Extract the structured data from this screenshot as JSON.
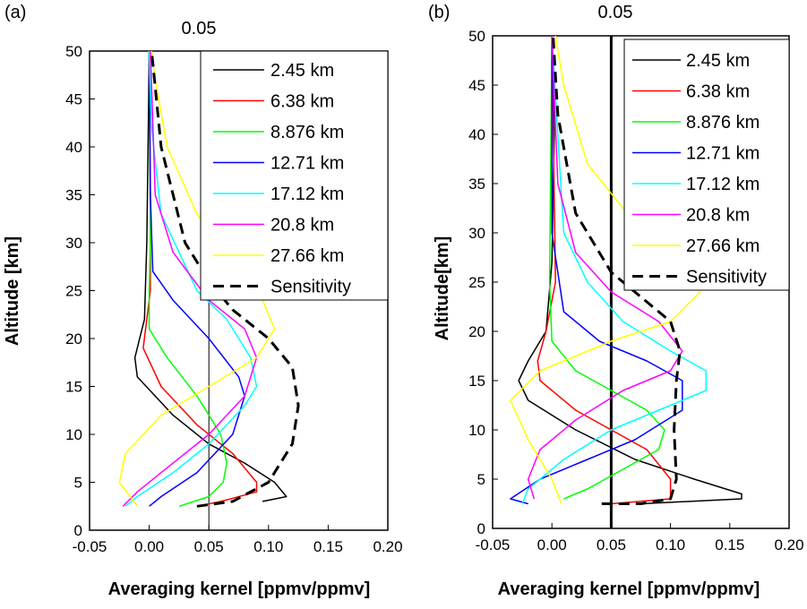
{
  "chart_data": [
    {
      "panel_label": "(a)",
      "type": "line",
      "reference_label": "0.05",
      "reference_x": 0.05,
      "xlabel": "Averaging  kernel [ppmv/ppmv]",
      "ylabel": "Altitude [km]",
      "xlim": [
        -0.05,
        0.2
      ],
      "ylim": [
        0,
        50
      ],
      "xticks": [
        "-0.05",
        "0.00",
        "0.05",
        "0.10",
        "0.15",
        "0.20"
      ],
      "yticks": [
        "0",
        "5",
        "10",
        "15",
        "20",
        "25",
        "30",
        "35",
        "40",
        "45",
        "50"
      ],
      "legend_position": "top-right",
      "series": [
        {
          "name": "2.45 km",
          "color": "#000000",
          "dashed": false,
          "x": [
            0.095,
            0.115,
            0.105,
            0.08,
            0.05,
            0.02,
            -0.01,
            -0.012,
            -0.008,
            -0.004,
            -0.002,
            -0.001,
            0.0
          ],
          "y": [
            3,
            3.5,
            5,
            7,
            9,
            12,
            16,
            18,
            20,
            22,
            30,
            40,
            50
          ]
        },
        {
          "name": "6.38 km",
          "color": "#ff0000",
          "dashed": false,
          "x": [
            0.04,
            0.06,
            0.09,
            0.09,
            0.07,
            0.04,
            0.01,
            -0.005,
            -0.002,
            0.001,
            0.001,
            0.0
          ],
          "y": [
            2.5,
            3,
            4,
            5,
            8,
            11,
            15,
            19,
            22,
            25,
            35,
            50
          ]
        },
        {
          "name": "8.876 km",
          "color": "#00ff00",
          "dashed": false,
          "x": [
            0.025,
            0.05,
            0.062,
            0.065,
            0.06,
            0.04,
            0.015,
            0.0,
            0.0,
            0.001,
            0.0
          ],
          "y": [
            2.5,
            3.5,
            5,
            7,
            10,
            14,
            18,
            21,
            25,
            30,
            50
          ]
        },
        {
          "name": "12.71 km",
          "color": "#0000ff",
          "dashed": false,
          "x": [
            0.0,
            0.01,
            0.04,
            0.07,
            0.08,
            0.075,
            0.05,
            0.02,
            0.003,
            0.001,
            0.0
          ],
          "y": [
            2.5,
            3.5,
            6,
            10,
            14,
            16,
            20,
            24,
            27,
            35,
            50
          ]
        },
        {
          "name": "17.12 km",
          "color": "#00ffff",
          "dashed": false,
          "x": [
            -0.02,
            -0.01,
            0.02,
            0.05,
            0.08,
            0.09,
            0.085,
            0.065,
            0.04,
            0.01,
            0.002,
            0.0
          ],
          "y": [
            2.5,
            3.5,
            6,
            9,
            13,
            15,
            18,
            22,
            25,
            33,
            42,
            50
          ]
        },
        {
          "name": "20.8 km",
          "color": "#ff00ff",
          "dashed": false,
          "x": [
            -0.022,
            -0.01,
            0.02,
            0.05,
            0.08,
            0.09,
            0.08,
            0.05,
            0.02,
            0.005,
            0.001
          ],
          "y": [
            2.5,
            4,
            7,
            10,
            14,
            18,
            21,
            24,
            29,
            35,
            50
          ]
        },
        {
          "name": "27.66 km",
          "color": "#ffff00",
          "dashed": false,
          "x": [
            -0.01,
            -0.025,
            -0.02,
            0.01,
            0.05,
            0.09,
            0.105,
            0.095,
            0.07,
            0.04,
            0.015,
            0.005,
            0.002
          ],
          "y": [
            2.5,
            5,
            8,
            12,
            15,
            18,
            21,
            24,
            28,
            33,
            40,
            47,
            50
          ]
        },
        {
          "name": "Sensitivity",
          "color": "#000000",
          "dashed": true,
          "x": [
            0.04,
            0.07,
            0.1,
            0.12,
            0.125,
            0.12,
            0.1,
            0.07,
            0.05,
            0.03,
            0.01,
            0.002
          ],
          "y": [
            2.5,
            3,
            5,
            9,
            13,
            17,
            20,
            23,
            26,
            30,
            40,
            50
          ]
        }
      ]
    },
    {
      "panel_label": "(b)",
      "type": "line",
      "reference_label": "0.05",
      "reference_x": 0.05,
      "xlabel": "Averaging  kernel [ppmv/ppmv]",
      "ylabel": "Altitude[km]",
      "xlim": [
        -0.05,
        0.2
      ],
      "ylim": [
        0,
        50
      ],
      "xticks": [
        "-0.05",
        "0.00",
        "0.05",
        "0.10",
        "0.15",
        "0.20"
      ],
      "yticks": [
        "0",
        "5",
        "10",
        "15",
        "20",
        "25",
        "30",
        "35",
        "40",
        "45",
        "50"
      ],
      "legend_position": "top-right",
      "series": [
        {
          "name": "2.45 km",
          "color": "#000000",
          "dashed": false,
          "x": [
            0.075,
            0.16,
            0.16,
            0.12,
            0.07,
            0.02,
            -0.02,
            -0.028,
            -0.02,
            -0.005,
            0.0,
            0.002,
            0.0
          ],
          "y": [
            2.5,
            3,
            3.5,
            5,
            7,
            10,
            13,
            15,
            17,
            20,
            27,
            40,
            50
          ]
        },
        {
          "name": "6.38 km",
          "color": "#ff0000",
          "dashed": false,
          "x": [
            0.05,
            0.1,
            0.1,
            0.08,
            0.05,
            0.02,
            -0.01,
            -0.012,
            -0.005,
            0.003,
            0.0
          ],
          "y": [
            2.5,
            3,
            5,
            8,
            10,
            12,
            15,
            17,
            20,
            25,
            50
          ]
        },
        {
          "name": "8.876 km",
          "color": "#00ff00",
          "dashed": false,
          "x": [
            0.01,
            0.03,
            0.06,
            0.09,
            0.095,
            0.08,
            0.05,
            0.02,
            0.0,
            -0.002,
            0.0
          ],
          "y": [
            3,
            4,
            6,
            8,
            10,
            12,
            14,
            16,
            19,
            25,
            50
          ]
        },
        {
          "name": "12.71 km",
          "color": "#0000ff",
          "dashed": false,
          "x": [
            -0.02,
            -0.035,
            -0.01,
            0.03,
            0.07,
            0.11,
            0.11,
            0.08,
            0.04,
            0.01,
            0.0,
            0.0
          ],
          "y": [
            2.5,
            3,
            5,
            7,
            9,
            12,
            15,
            17,
            19,
            22,
            30,
            50
          ]
        },
        {
          "name": "17.12 km",
          "color": "#00ffff",
          "dashed": false,
          "x": [
            -0.025,
            -0.02,
            0.01,
            0.05,
            0.09,
            0.13,
            0.13,
            0.1,
            0.06,
            0.03,
            0.01,
            0.0
          ],
          "y": [
            2.5,
            4,
            7,
            10,
            12,
            14,
            16,
            18,
            21,
            25,
            30,
            50
          ]
        },
        {
          "name": "20.8 km",
          "color": "#ff00ff",
          "dashed": false,
          "x": [
            -0.015,
            -0.02,
            -0.01,
            0.02,
            0.06,
            0.1,
            0.11,
            0.09,
            0.05,
            0.02,
            0.005,
            0.0
          ],
          "y": [
            3,
            5,
            8,
            11,
            14,
            16,
            18,
            21,
            24,
            28,
            35,
            50
          ]
        },
        {
          "name": "27.66 km",
          "color": "#ffff00",
          "dashed": false,
          "x": [
            0.008,
            0.0,
            -0.02,
            -0.035,
            -0.01,
            0.05,
            0.1,
            0.125,
            0.11,
            0.07,
            0.03,
            0.01,
            0.003
          ],
          "y": [
            2.5,
            5,
            9,
            13,
            16,
            19,
            21,
            24,
            27,
            31,
            37,
            45,
            50
          ]
        },
        {
          "name": "Sensitivity",
          "color": "#000000",
          "dashed": true,
          "x": [
            0.042,
            0.075,
            0.1,
            0.105,
            0.103,
            0.105,
            0.108,
            0.1,
            0.08,
            0.05,
            0.02,
            0.005,
            0.001
          ],
          "y": [
            2.5,
            2.5,
            3,
            5,
            10,
            15,
            18,
            21,
            23,
            26,
            32,
            42,
            50
          ]
        }
      ]
    }
  ]
}
